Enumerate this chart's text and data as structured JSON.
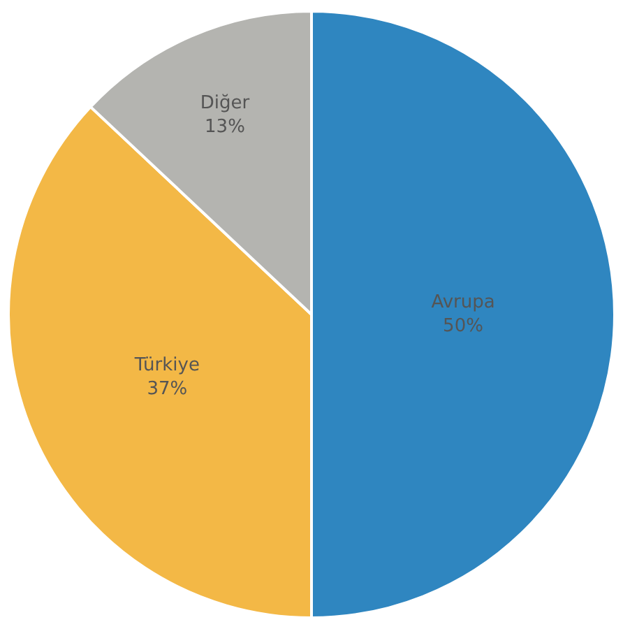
{
  "chart_data": {
    "type": "pie",
    "categories": [
      "Avrupa",
      "Türkiye",
      "Diğer"
    ],
    "values": [
      50,
      37,
      13
    ],
    "value_labels": [
      "50%",
      "37%",
      "13%"
    ],
    "colors": [
      "#2f86c0",
      "#f3b846",
      "#b4b4b0"
    ],
    "legend": false
  }
}
